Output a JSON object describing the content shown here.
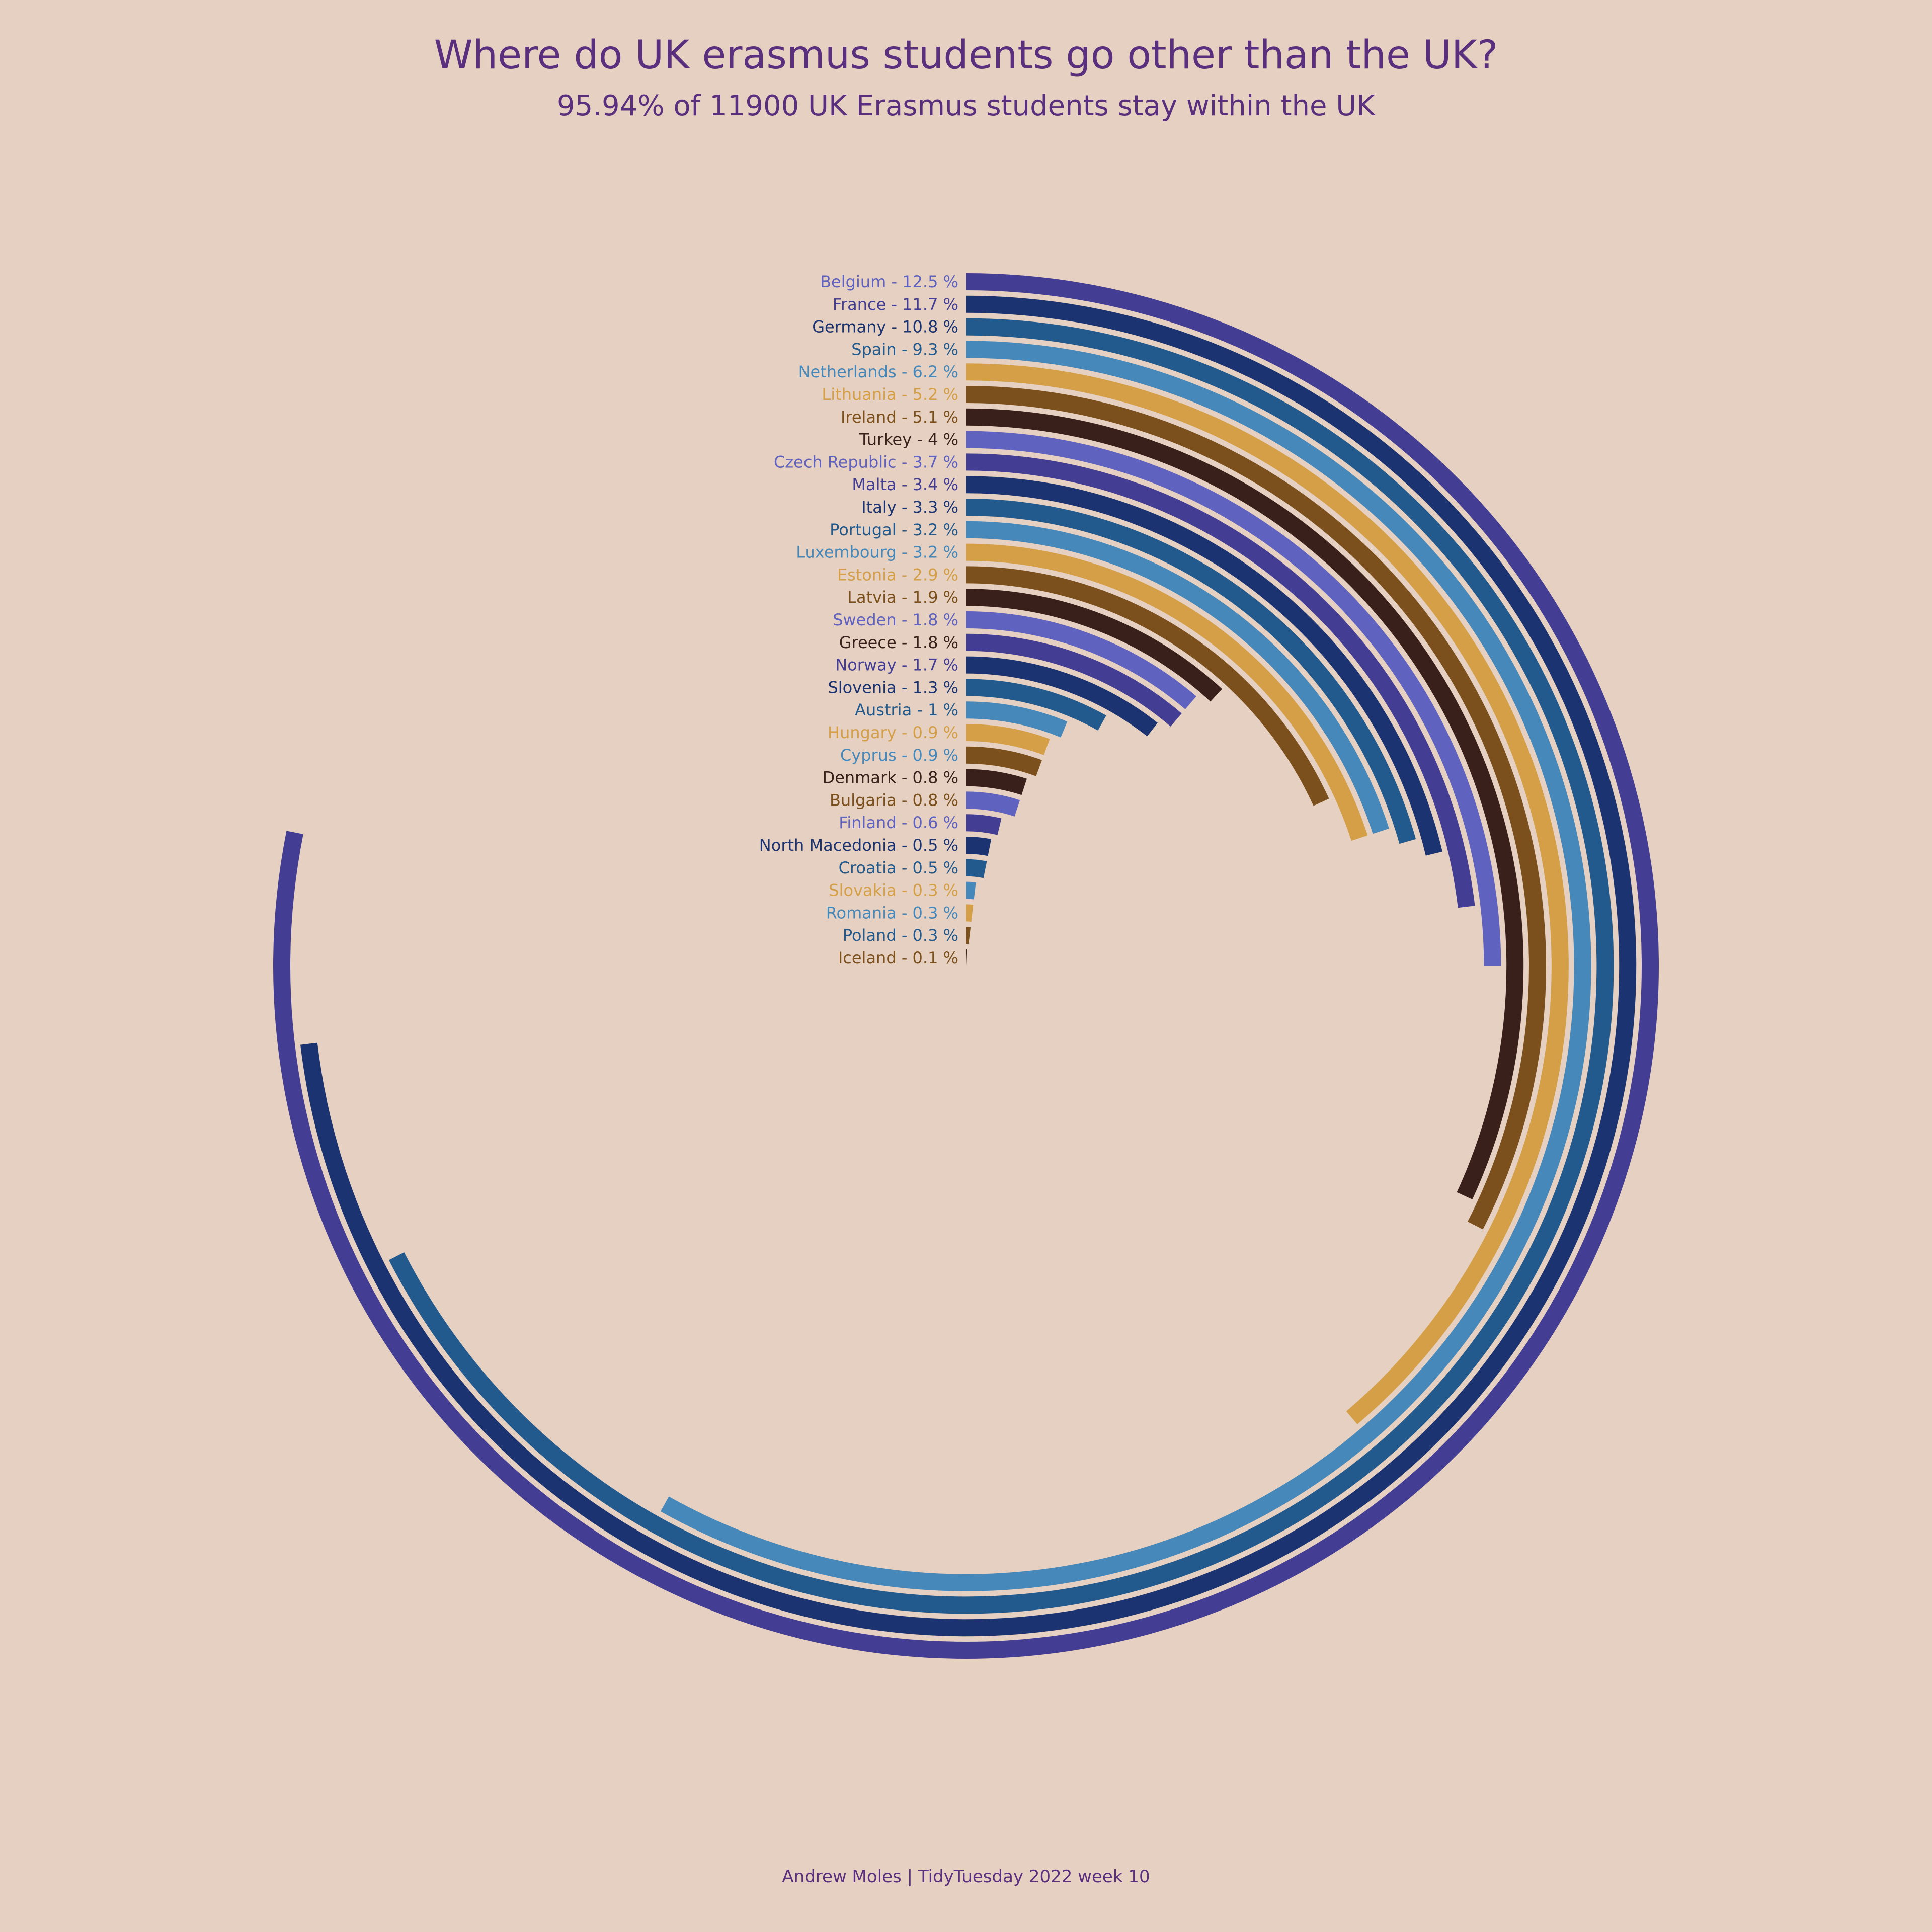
{
  "title": "Where do UK erasmus students go other than the UK?",
  "subtitle": "95.94% of 11900 UK Erasmus students stay within the UK",
  "caption": "Andrew Moles | TidyTuesday 2022 week 10",
  "colors": {
    "background": "#e5d0c1",
    "text": "#5a2f7e",
    "palette": [
      "#433d94",
      "#1b3370",
      "#235a8d",
      "#4688ba",
      "#d49f47",
      "#7b501c",
      "#39201a",
      "#6062c0"
    ]
  },
  "chart_data": {
    "type": "radial-bar",
    "title": "Where do UK erasmus students go other than the UK?",
    "subtitle": "95.94% of 11900 UK Erasmus students stay within the UK",
    "value_unit": "%",
    "full_circle_value": 16,
    "categories": [
      "Belgium",
      "France",
      "Germany",
      "Spain",
      "Netherlands",
      "Lithuania",
      "Ireland",
      "Turkey",
      "Czech Republic",
      "Malta",
      "Italy",
      "Portugal",
      "Luxembourg",
      "Estonia",
      "Latvia",
      "Sweden",
      "Greece",
      "Norway",
      "Slovenia",
      "Austria",
      "Hungary",
      "Cyprus",
      "Denmark",
      "Bulgaria",
      "Finland",
      "North Macedonia",
      "Croatia",
      "Slovakia",
      "Romania",
      "Poland",
      "Iceland"
    ],
    "values": [
      12.5,
      11.7,
      10.8,
      9.3,
      6.2,
      5.2,
      5.1,
      4,
      3.7,
      3.4,
      3.3,
      3.2,
      3.2,
      2.9,
      1.9,
      1.8,
      1.8,
      1.7,
      1.3,
      1,
      0.9,
      0.9,
      0.8,
      0.8,
      0.6,
      0.5,
      0.5,
      0.3,
      0.3,
      0.3,
      0.1
    ],
    "labels": [
      "Belgium - 12.5 %",
      "France - 11.7 %",
      "Germany - 10.8 %",
      "Spain - 9.3 %",
      "Netherlands - 6.2 %",
      "Lithuania - 5.2 %",
      "Ireland - 5.1 %",
      "Turkey - 4 %",
      "Czech Republic - 3.7 %",
      "Malta - 3.4 %",
      "Italy - 3.3 %",
      "Portugal - 3.2 %",
      "Luxembourg - 3.2 %",
      "Estonia - 2.9 %",
      "Latvia - 1.9 %",
      "Sweden - 1.8 %",
      "Greece - 1.8 %",
      "Norway - 1.7 %",
      "Slovenia - 1.3 %",
      "Austria - 1 %",
      "Hungary - 0.9 %",
      "Cyprus - 0.9 %",
      "Denmark - 0.8 %",
      "Bulgaria - 0.8 %",
      "Finland - 0.6 %",
      "North Macedonia - 0.5 %",
      "Croatia - 0.5 %",
      "Slovakia - 0.3 %",
      "Romania - 0.3 %",
      "Poland - 0.3 %",
      "Iceland - 0.1 %"
    ],
    "bar_colors": [
      "#433d94",
      "#1b3370",
      "#235a8d",
      "#4688ba",
      "#d49f47",
      "#7b501c",
      "#39201a",
      "#6062c0",
      "#433d94",
      "#1b3370",
      "#235a8d",
      "#4688ba",
      "#d49f47",
      "#7b501c",
      "#39201a",
      "#6062c0",
      "#433d94",
      "#1b3370",
      "#235a8d",
      "#4688ba",
      "#d49f47",
      "#7b501c",
      "#39201a",
      "#6062c0",
      "#433d94",
      "#1b3370",
      "#235a8d",
      "#4688ba",
      "#d49f47",
      "#7b501c",
      "#39201a"
    ],
    "label_colors": [
      "#6062c0",
      "#433d94",
      "#1b3370",
      "#235a8d",
      "#4688ba",
      "#d49f47",
      "#7b501c",
      "#39201a",
      "#6062c0",
      "#433d94",
      "#1b3370",
      "#235a8d",
      "#4688ba",
      "#d49f47",
      "#7b501c",
      "#6062c0",
      "#39201a",
      "#433d94",
      "#1b3370",
      "#235a8d",
      "#d49f47",
      "#4688ba",
      "#39201a",
      "#7b501c",
      "#6062c0",
      "#1b3370",
      "#235a8d",
      "#d49f47",
      "#4688ba",
      "#235a8d",
      "#7b501c"
    ],
    "start_angle": "top (12 o'clock)",
    "direction": "clockwise",
    "grid": false,
    "legend": "none"
  }
}
